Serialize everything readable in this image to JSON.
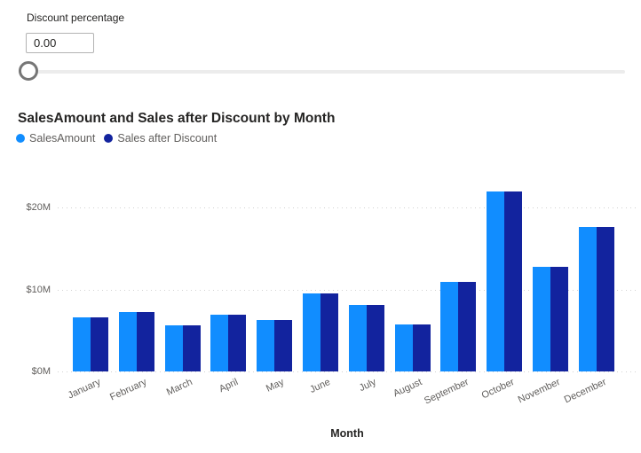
{
  "slicer": {
    "label": "Discount percentage",
    "value": "0.00"
  },
  "chart": {
    "title": "SalesAmount and Sales after Discount by Month",
    "x_axis_title": "Month"
  },
  "chart_data": {
    "type": "bar",
    "title": "SalesAmount and Sales after Discount by Month",
    "categories": [
      "January",
      "February",
      "March",
      "April",
      "May",
      "June",
      "July",
      "August",
      "September",
      "October",
      "November",
      "December"
    ],
    "series": [
      {
        "name": "SalesAmount",
        "color": "#118DFF",
        "values": [
          6.6,
          7.3,
          5.6,
          6.9,
          6.3,
          9.5,
          8.1,
          5.7,
          10.9,
          22.0,
          12.8,
          17.6
        ]
      },
      {
        "name": "Sales after Discount",
        "color": "#12239E",
        "values": [
          6.6,
          7.3,
          5.6,
          6.9,
          6.3,
          9.5,
          8.1,
          5.7,
          10.9,
          22.0,
          12.8,
          17.6
        ]
      }
    ],
    "value_unit": "USD millions",
    "xlabel": "Month",
    "ylabel": "",
    "ylim": [
      0,
      22.5
    ],
    "y_ticks": [
      "$0M",
      "$10M",
      "$20M"
    ],
    "grid": "dotted horizontal",
    "legend_position": "top-left"
  }
}
